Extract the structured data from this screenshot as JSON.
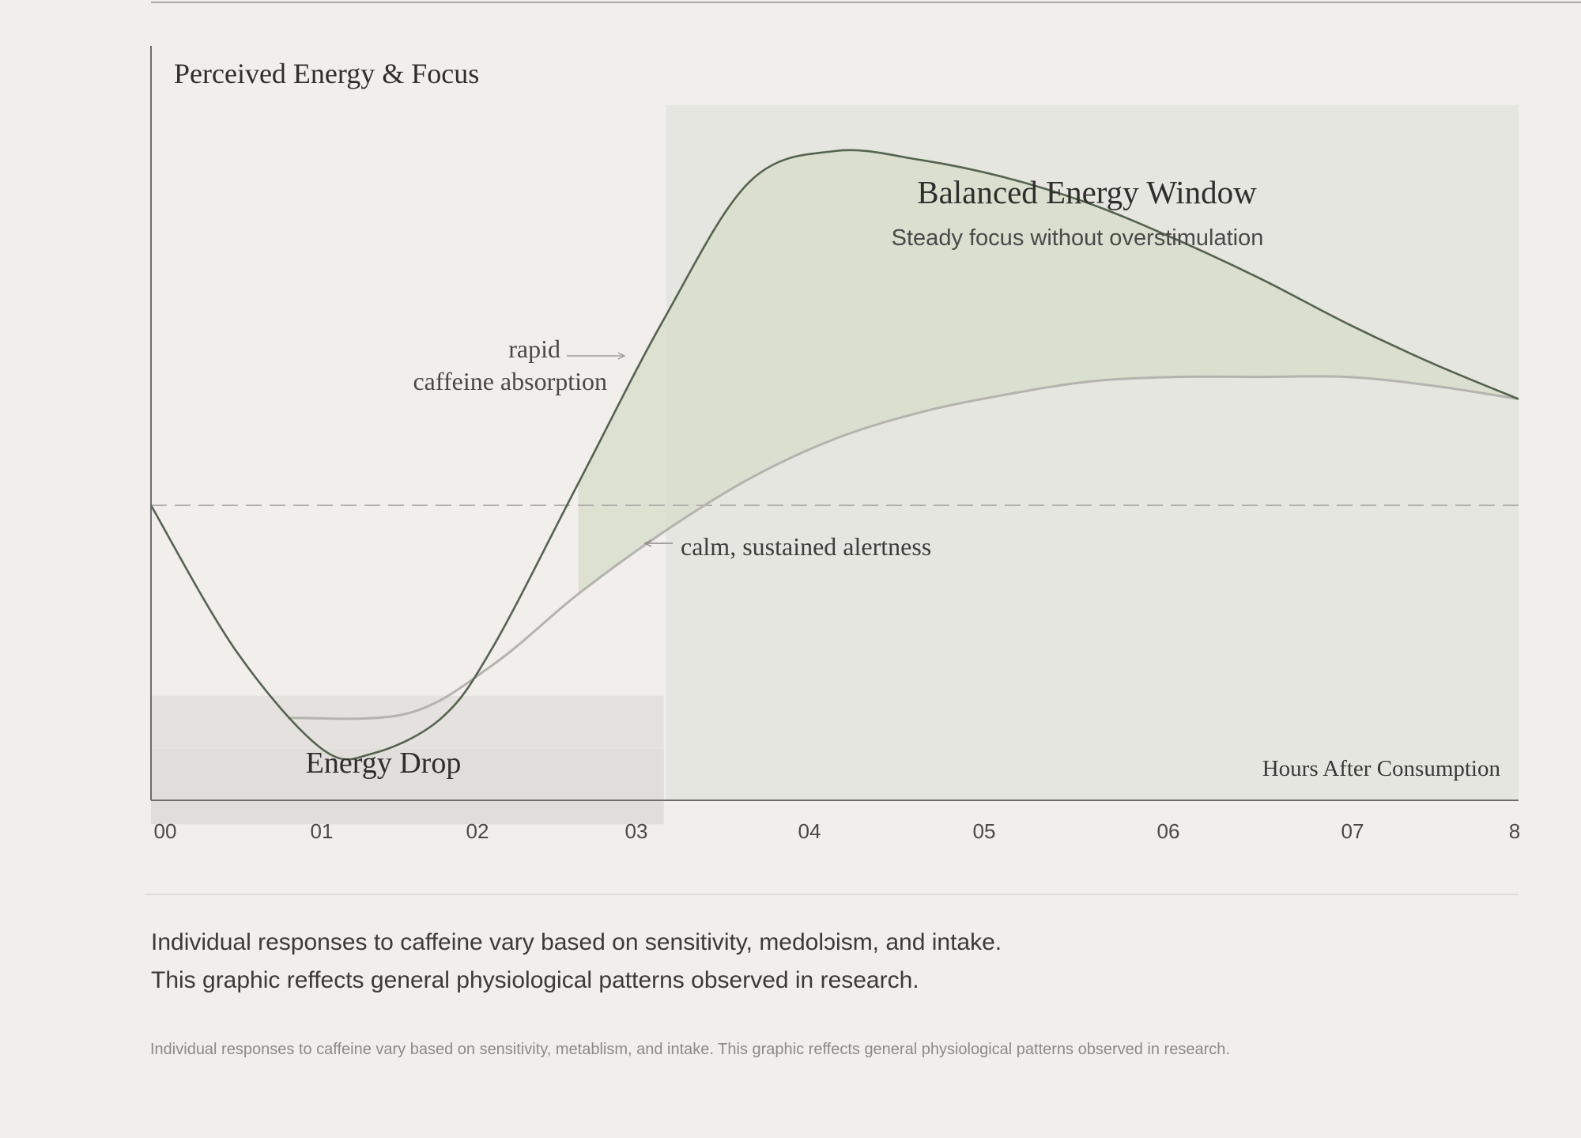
{
  "chart_data": {
    "type": "line",
    "title": "Perceived Energy & Focus",
    "xlabel": "Hours After Consumption",
    "ylabel": "Perceived Energy & Focus",
    "x_ticks": [
      "00",
      "01",
      "02",
      "03",
      "04",
      "05",
      "06",
      "07",
      "8"
    ],
    "xlim": [
      0,
      8
    ],
    "ylim": [
      -1,
      1
    ],
    "baseline": 0,
    "series": [
      {
        "name": "rapid caffeine absorption",
        "color": "#55634f",
        "x": [
          0,
          0.5,
          1.0,
          1.3,
          1.7,
          2.0,
          2.5,
          3.0,
          3.5,
          4.0,
          4.5,
          5.0,
          5.5,
          6.0,
          6.5,
          7.0,
          7.5,
          8.0
        ],
        "y": [
          0.0,
          -0.33,
          -0.55,
          -0.56,
          -0.48,
          -0.32,
          0.05,
          0.42,
          0.73,
          0.8,
          0.78,
          0.74,
          0.68,
          0.6,
          0.51,
          0.41,
          0.32,
          0.24
        ]
      },
      {
        "name": "calm, sustained alertness",
        "color": "#b4b3ae",
        "x": [
          0.8,
          1.5,
          2.0,
          2.5,
          3.0,
          3.5,
          4.0,
          4.5,
          5.0,
          5.5,
          6.0,
          6.5,
          7.0,
          7.5,
          8.0
        ],
        "y": [
          -0.48,
          -0.47,
          -0.36,
          -0.2,
          -0.06,
          0.06,
          0.15,
          0.21,
          0.25,
          0.28,
          0.29,
          0.29,
          0.29,
          0.27,
          0.24
        ]
      }
    ],
    "regions": [
      {
        "name": "Energy Drop",
        "x_start": 0,
        "x_end": 3.0
      },
      {
        "name": "Balanced Energy Window",
        "subtitle": "Steady focus without overstimulation",
        "x_start": 3.0,
        "x_end": 8.0
      }
    ],
    "annotations": {
      "rapid_line1": "rapid",
      "rapid_line2": "caffeine absorption",
      "calm": "calm, sustained alertness"
    }
  },
  "caption": {
    "line1": "Individual responses to caffeine vary based on sensitivity, medolɔism, and intake.",
    "line2": "This graphic reffects general physiological patterns observed in research."
  },
  "footnote": "Individual responses to caffeine vary based on sensitivity, metablism, and intake. This graphic reffects general physiological patterns observed in research.",
  "colors": {
    "background": "#f1eeec",
    "balanced_window": "#e5e6df",
    "energy_drop": "#e4e1df",
    "energy_drop_dark": "#dbd8d6",
    "fill_between": "#d7ddcc",
    "primary_line": "#55634f",
    "secondary_line": "#b4b3ae",
    "axis": "#6e6c6a"
  }
}
